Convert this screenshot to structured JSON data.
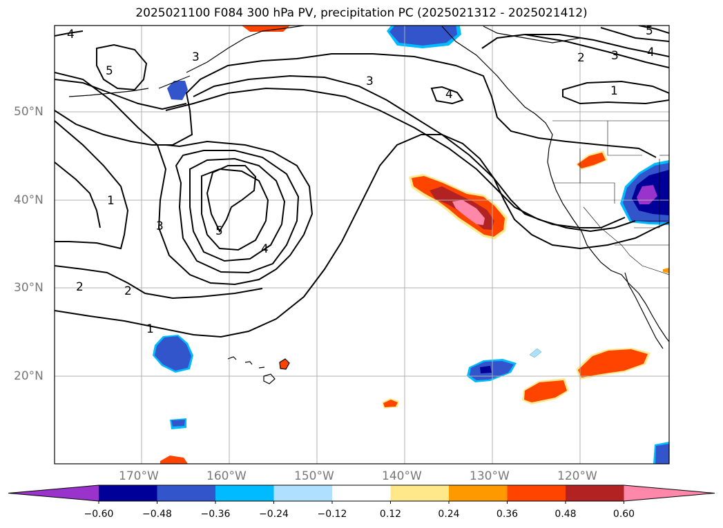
{
  "title": "2025021100 F084 300 hPa PV, precipitation PC (2025021312 - 2025021412)",
  "lat_labels": [
    "50°N",
    "40°N",
    "30°N",
    "20°N"
  ],
  "lon_labels": [
    "170°W",
    "160°W",
    "150°W",
    "140°W",
    "130°W",
    "120°W"
  ],
  "contour_labels": {
    "c4a": "4",
    "c5a": "5",
    "c3a": "3",
    "c3b": "3",
    "c4b": "4",
    "c2a": "2",
    "c3c": "3",
    "c4c": "4",
    "c1a": "1",
    "c5b": "5",
    "c1b": "1",
    "c3d": "3",
    "c5c": "5",
    "c4d": "4",
    "c2b": "2",
    "c2c": "2",
    "c1c": "1"
  },
  "colorbar": {
    "colors": [
      "#9933cc",
      "#000099",
      "#3355cc",
      "#00bbff",
      "#b0e0ff",
      "#ffffff",
      "#ffe88a",
      "#ff9900",
      "#ff4400",
      "#b22222",
      "#ff88aa"
    ],
    "ticks": [
      "−0.60",
      "−0.48",
      "−0.36",
      "−0.24",
      "−0.12",
      "0.12",
      "0.24",
      "0.36",
      "0.48",
      "0.60"
    ]
  }
}
